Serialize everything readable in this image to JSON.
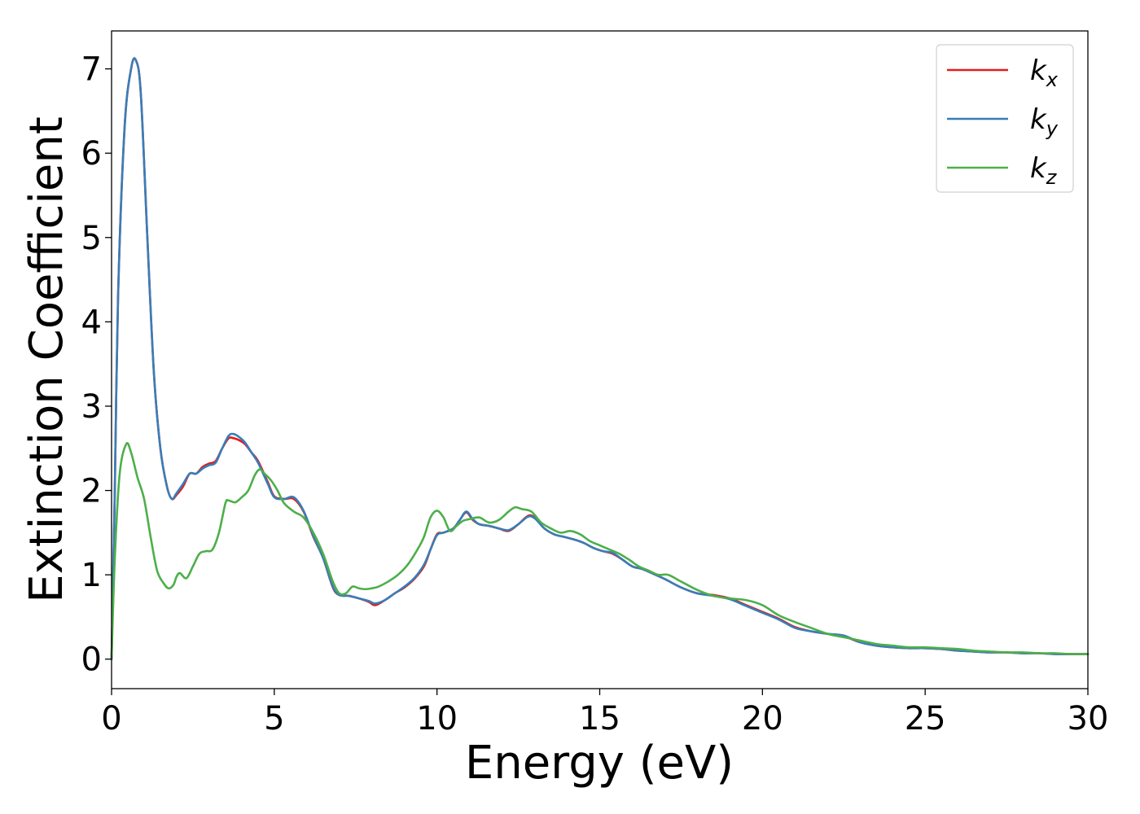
{
  "chart_data": {
    "type": "line",
    "xlabel": "Energy (eV)",
    "ylabel": "Extinction Coefficient",
    "xlim": [
      0,
      30
    ],
    "ylim": [
      -0.35,
      7.45
    ],
    "xticks": [
      "0",
      "5",
      "10",
      "15",
      "20",
      "25",
      "30"
    ],
    "yticks": [
      "0",
      "1",
      "2",
      "3",
      "4",
      "5",
      "6",
      "7"
    ],
    "grid": false,
    "legend_position": "top-right",
    "series": [
      {
        "name": "k_x",
        "label_base": "k",
        "label_sub": "x",
        "color": "#e41a1c",
        "x": [
          0,
          0.1,
          0.2,
          0.4,
          0.6,
          0.75,
          0.9,
          1.1,
          1.3,
          1.5,
          1.7,
          1.85,
          2.0,
          2.2,
          2.4,
          2.6,
          2.8,
          3.0,
          3.2,
          3.4,
          3.6,
          3.75,
          3.9,
          4.1,
          4.3,
          4.5,
          4.8,
          5.0,
          5.3,
          5.6,
          5.9,
          6.2,
          6.5,
          6.8,
          7.0,
          7.3,
          7.6,
          7.9,
          8.1,
          8.4,
          8.7,
          9.0,
          9.3,
          9.6,
          9.8,
          10.0,
          10.2,
          10.5,
          10.7,
          10.9,
          11.1,
          11.3,
          11.6,
          11.9,
          12.2,
          12.5,
          12.8,
          13.0,
          13.3,
          13.6,
          13.9,
          14.2,
          14.5,
          14.8,
          15.1,
          15.4,
          15.7,
          16.0,
          16.3,
          16.6,
          17.0,
          17.5,
          18.0,
          18.5,
          19.0,
          19.5,
          20.0,
          20.5,
          21.0,
          21.5,
          22.0,
          22.5,
          23.0,
          23.5,
          24.0,
          24.5,
          25.0,
          25.5,
          26.0,
          26.5,
          27.0,
          27.5,
          28.0,
          28.5,
          29.0,
          29.5,
          30.0
        ],
        "y": [
          0.0,
          2.0,
          4.3,
          6.3,
          7.0,
          7.1,
          6.7,
          5.0,
          3.4,
          2.5,
          2.05,
          1.9,
          1.95,
          2.05,
          2.2,
          2.2,
          2.28,
          2.32,
          2.35,
          2.5,
          2.62,
          2.62,
          2.6,
          2.55,
          2.45,
          2.35,
          2.1,
          1.93,
          1.9,
          1.9,
          1.75,
          1.45,
          1.2,
          0.85,
          0.76,
          0.75,
          0.72,
          0.68,
          0.64,
          0.7,
          0.78,
          0.85,
          0.95,
          1.1,
          1.3,
          1.48,
          1.5,
          1.55,
          1.65,
          1.74,
          1.65,
          1.6,
          1.58,
          1.55,
          1.52,
          1.6,
          1.7,
          1.68,
          1.55,
          1.48,
          1.45,
          1.42,
          1.38,
          1.32,
          1.28,
          1.25,
          1.18,
          1.1,
          1.07,
          1.02,
          0.95,
          0.85,
          0.78,
          0.76,
          0.72,
          0.64,
          0.56,
          0.48,
          0.38,
          0.33,
          0.3,
          0.27,
          0.2,
          0.16,
          0.14,
          0.13,
          0.13,
          0.12,
          0.1,
          0.09,
          0.08,
          0.08,
          0.07,
          0.07,
          0.06,
          0.06,
          0.06
        ]
      },
      {
        "name": "k_y",
        "label_base": "k",
        "label_sub": "y",
        "color": "#377eb8",
        "x": [
          0,
          0.1,
          0.2,
          0.4,
          0.6,
          0.75,
          0.9,
          1.1,
          1.3,
          1.5,
          1.7,
          1.85,
          2.0,
          2.2,
          2.4,
          2.6,
          2.8,
          3.0,
          3.2,
          3.4,
          3.6,
          3.75,
          3.9,
          4.1,
          4.3,
          4.5,
          4.8,
          5.0,
          5.3,
          5.6,
          5.9,
          6.2,
          6.5,
          6.8,
          7.0,
          7.3,
          7.6,
          7.9,
          8.1,
          8.4,
          8.7,
          9.0,
          9.3,
          9.6,
          9.8,
          10.0,
          10.2,
          10.5,
          10.7,
          10.9,
          11.1,
          11.3,
          11.6,
          11.9,
          12.2,
          12.5,
          12.8,
          13.0,
          13.3,
          13.6,
          13.9,
          14.2,
          14.5,
          14.8,
          15.1,
          15.4,
          15.7,
          16.0,
          16.3,
          16.6,
          17.0,
          17.5,
          18.0,
          18.5,
          19.0,
          19.5,
          20.0,
          20.5,
          21.0,
          21.5,
          22.0,
          22.5,
          23.0,
          23.5,
          24.0,
          24.5,
          25.0,
          25.5,
          26.0,
          26.5,
          27.0,
          27.5,
          28.0,
          28.5,
          29.0,
          29.5,
          30.0
        ],
        "y": [
          0.0,
          2.0,
          4.3,
          6.3,
          7.0,
          7.1,
          6.7,
          5.0,
          3.4,
          2.5,
          2.05,
          1.9,
          1.97,
          2.08,
          2.2,
          2.2,
          2.26,
          2.3,
          2.33,
          2.5,
          2.65,
          2.67,
          2.64,
          2.57,
          2.45,
          2.33,
          2.08,
          1.92,
          1.9,
          1.92,
          1.76,
          1.46,
          1.2,
          0.86,
          0.76,
          0.75,
          0.72,
          0.69,
          0.66,
          0.7,
          0.78,
          0.86,
          0.96,
          1.12,
          1.3,
          1.47,
          1.5,
          1.55,
          1.65,
          1.75,
          1.66,
          1.6,
          1.58,
          1.55,
          1.53,
          1.6,
          1.69,
          1.67,
          1.55,
          1.48,
          1.45,
          1.42,
          1.38,
          1.32,
          1.28,
          1.26,
          1.18,
          1.1,
          1.07,
          1.02,
          0.95,
          0.85,
          0.78,
          0.75,
          0.71,
          0.63,
          0.55,
          0.47,
          0.37,
          0.33,
          0.3,
          0.28,
          0.2,
          0.16,
          0.14,
          0.13,
          0.13,
          0.12,
          0.1,
          0.09,
          0.08,
          0.08,
          0.07,
          0.07,
          0.06,
          0.06,
          0.06
        ]
      },
      {
        "name": "k_z",
        "label_base": "k",
        "label_sub": "z",
        "color": "#4daf4a",
        "x": [
          0,
          0.1,
          0.25,
          0.45,
          0.6,
          0.8,
          1.0,
          1.2,
          1.4,
          1.6,
          1.75,
          1.9,
          2.0,
          2.1,
          2.3,
          2.5,
          2.7,
          2.9,
          3.1,
          3.3,
          3.5,
          3.6,
          3.8,
          4.0,
          4.2,
          4.4,
          4.55,
          4.7,
          4.9,
          5.1,
          5.3,
          5.6,
          5.9,
          6.2,
          6.5,
          6.8,
          7.0,
          7.2,
          7.4,
          7.6,
          7.8,
          8.0,
          8.2,
          8.5,
          8.8,
          9.1,
          9.4,
          9.6,
          9.8,
          10.0,
          10.2,
          10.4,
          10.6,
          10.8,
          11.0,
          11.3,
          11.6,
          11.9,
          12.2,
          12.4,
          12.6,
          12.9,
          13.2,
          13.5,
          13.8,
          14.1,
          14.4,
          14.7,
          15.0,
          15.3,
          15.6,
          15.9,
          16.2,
          16.5,
          16.8,
          17.1,
          17.5,
          18.0,
          18.5,
          19.0,
          19.5,
          20.0,
          20.5,
          21.0,
          21.5,
          22.0,
          22.5,
          23.0,
          23.5,
          24.0,
          24.5,
          25.0,
          25.5,
          26.0,
          26.5,
          27.0,
          27.5,
          28.0,
          28.5,
          29.0,
          29.5,
          30.0
        ],
        "y": [
          0.0,
          1.2,
          2.2,
          2.55,
          2.45,
          2.15,
          1.9,
          1.45,
          1.05,
          0.9,
          0.84,
          0.88,
          0.98,
          1.02,
          0.96,
          1.1,
          1.25,
          1.28,
          1.3,
          1.5,
          1.85,
          1.88,
          1.86,
          1.92,
          2.0,
          2.18,
          2.25,
          2.2,
          2.12,
          2.0,
          1.85,
          1.75,
          1.68,
          1.5,
          1.25,
          0.92,
          0.78,
          0.78,
          0.86,
          0.84,
          0.83,
          0.84,
          0.86,
          0.92,
          1.0,
          1.12,
          1.3,
          1.45,
          1.68,
          1.76,
          1.68,
          1.52,
          1.58,
          1.64,
          1.66,
          1.68,
          1.62,
          1.65,
          1.75,
          1.8,
          1.78,
          1.75,
          1.62,
          1.55,
          1.5,
          1.52,
          1.48,
          1.4,
          1.35,
          1.3,
          1.25,
          1.18,
          1.1,
          1.05,
          1.0,
          1.0,
          0.92,
          0.82,
          0.75,
          0.72,
          0.7,
          0.64,
          0.52,
          0.44,
          0.37,
          0.3,
          0.26,
          0.22,
          0.18,
          0.16,
          0.14,
          0.14,
          0.13,
          0.12,
          0.1,
          0.09,
          0.08,
          0.08,
          0.07,
          0.07,
          0.06,
          0.06
        ]
      }
    ]
  }
}
